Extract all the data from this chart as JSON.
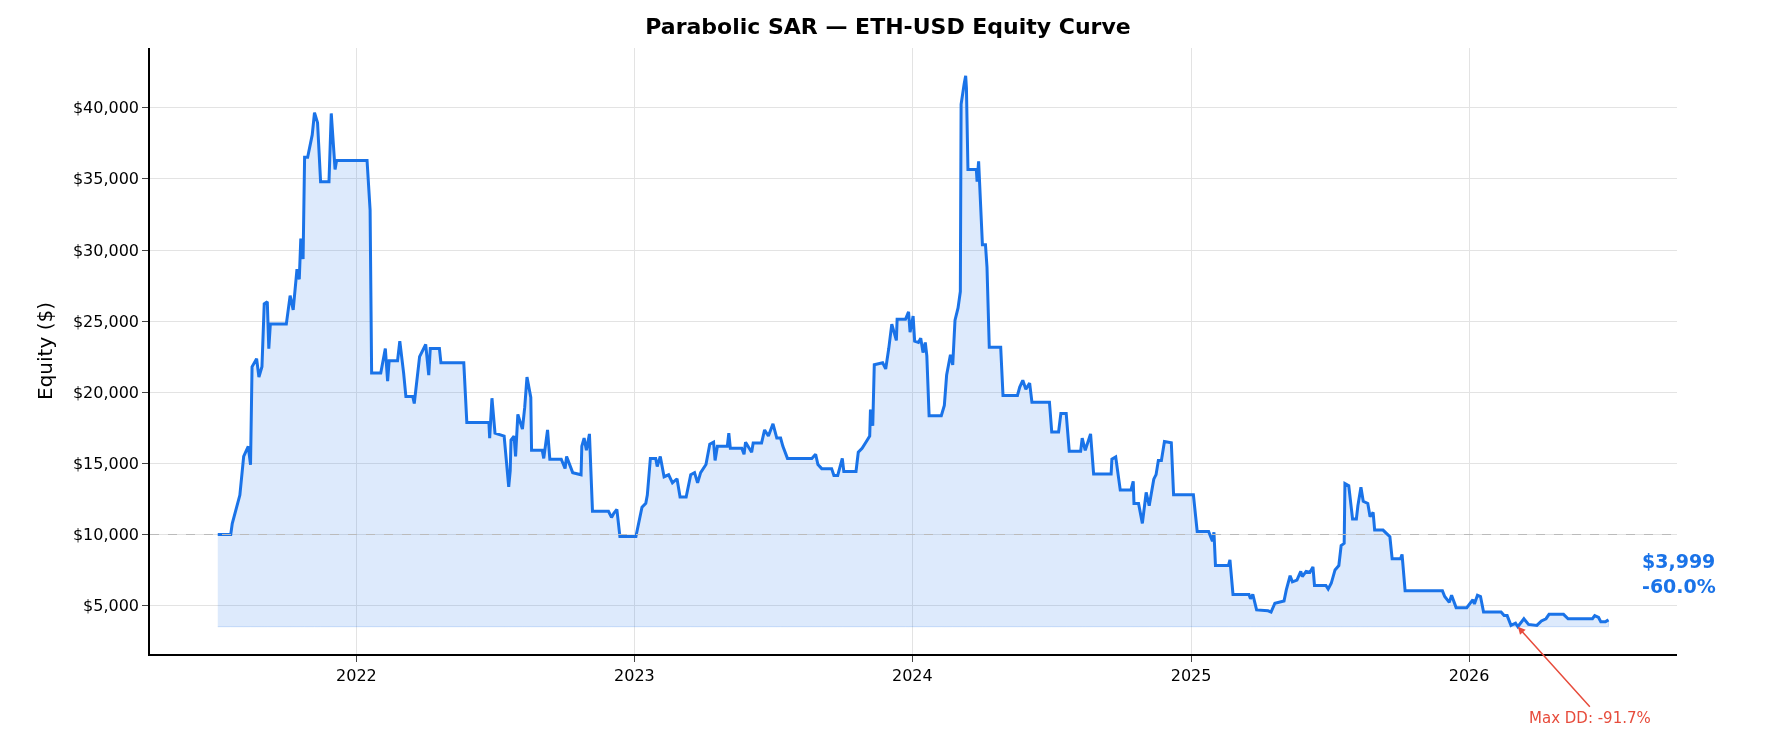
{
  "chart_data": {
    "type": "area",
    "title": "Parabolic SAR — ETH-USD Equity Curve",
    "ylabel": "Equity ($)",
    "x": [
      "2021-07-03",
      "2021-07-20",
      "2021-07-22",
      "2021-08-01",
      "2021-08-06",
      "2021-08-12",
      "2021-08-15",
      "2021-08-17",
      "2021-08-23",
      "2021-08-26",
      "2021-08-30",
      "2021-09-02",
      "2021-09-06",
      "2021-09-08",
      "2021-09-10",
      "2021-10-01",
      "2021-10-06",
      "2021-10-10",
      "2021-10-15",
      "2021-10-18",
      "2021-10-20",
      "2021-10-23",
      "2021-10-25",
      "2021-10-29",
      "2021-11-04",
      "2021-11-07",
      "2021-11-11",
      "2021-11-15",
      "2021-11-26",
      "2021-11-29",
      "2021-12-04",
      "2021-12-06",
      "2022-01-15",
      "2022-01-19",
      "2022-01-21",
      "2022-02-02",
      "2022-02-08",
      "2022-02-11",
      "2022-02-13",
      "2022-02-24",
      "2022-02-27",
      "2022-03-04",
      "2022-03-07",
      "2022-03-16",
      "2022-03-18",
      "2022-03-25",
      "2022-04-02",
      "2022-04-06",
      "2022-04-08",
      "2022-04-20",
      "2022-04-22",
      "2022-05-22",
      "2022-05-26",
      "2022-06-24",
      "2022-06-25",
      "2022-06-28",
      "2022-07-02",
      "2022-07-14",
      "2022-07-20",
      "2022-07-22",
      "2022-07-23",
      "2022-07-27",
      "2022-07-29",
      "2022-08-01",
      "2022-08-07",
      "2022-08-10",
      "2022-08-13",
      "2022-08-18",
      "2022-08-19",
      "2022-09-02",
      "2022-09-04",
      "2022-09-09",
      "2022-09-12",
      "2022-09-27",
      "2022-10-02",
      "2022-10-04",
      "2022-10-12",
      "2022-10-23",
      "2022-10-24",
      "2022-10-27",
      "2022-10-30",
      "2022-11-03",
      "2022-11-07",
      "2022-11-28",
      "2022-12-02",
      "2022-12-05",
      "2022-12-09",
      "2022-12-13",
      "2023-01-03",
      "2023-01-11",
      "2023-01-16",
      "2023-01-18",
      "2023-01-22",
      "2023-01-29",
      "2023-01-31",
      "2023-02-04",
      "2023-02-09",
      "2023-02-15",
      "2023-02-20",
      "2023-02-26",
      "2023-03-02",
      "2023-03-10",
      "2023-03-16",
      "2023-03-21",
      "2023-03-25",
      "2023-03-29",
      "2023-04-05",
      "2023-04-10",
      "2023-04-15",
      "2023-04-17",
      "2023-04-20",
      "2023-05-03",
      "2023-05-05",
      "2023-05-07",
      "2023-05-22",
      "2023-05-25",
      "2023-05-27",
      "2023-06-04",
      "2023-06-06",
      "2023-06-17",
      "2023-06-21",
      "2023-06-26",
      "2023-07-02",
      "2023-07-07",
      "2023-07-12",
      "2023-07-15",
      "2023-07-21",
      "2023-08-22",
      "2023-08-27",
      "2023-08-30",
      "2023-09-04",
      "2023-09-17",
      "2023-09-20",
      "2023-09-25",
      "2023-10-01",
      "2023-10-03",
      "2023-10-19",
      "2023-10-22",
      "2023-10-27",
      "2023-11-01",
      "2023-11-06",
      "2023-11-07",
      "2023-11-10",
      "2023-11-12",
      "2023-11-23",
      "2023-11-27",
      "2023-12-01",
      "2023-12-05",
      "2023-12-11",
      "2023-12-12",
      "2023-12-23",
      "2023-12-27",
      "2023-12-29",
      "2024-01-02",
      "2024-01-04",
      "2024-01-09",
      "2024-01-12",
      "2024-01-15",
      "2024-01-18",
      "2024-01-20",
      "2024-01-23",
      "2024-02-08",
      "2024-02-12",
      "2024-02-15",
      "2024-02-20",
      "2024-02-23",
      "2024-02-26",
      "2024-03-01",
      "2024-03-04",
      "2024-03-05",
      "2024-03-09",
      "2024-03-11",
      "2024-03-12",
      "2024-03-14",
      "2024-03-25",
      "2024-03-26",
      "2024-03-28",
      "2024-04-02",
      "2024-04-06",
      "2024-04-08",
      "2024-04-11",
      "2024-04-26",
      "2024-04-29",
      "2024-05-18",
      "2024-05-21",
      "2024-05-25",
      "2024-05-29",
      "2024-06-03",
      "2024-06-06",
      "2024-06-29",
      "2024-07-02",
      "2024-07-11",
      "2024-07-14",
      "2024-07-21",
      "2024-07-25",
      "2024-08-09",
      "2024-08-11",
      "2024-08-15",
      "2024-08-22",
      "2024-08-26",
      "2024-09-18",
      "2024-09-19",
      "2024-09-24",
      "2024-09-30",
      "2024-10-14",
      "2024-10-17",
      "2024-10-18",
      "2024-10-24",
      "2024-10-29",
      "2024-11-03",
      "2024-11-07",
      "2024-11-13",
      "2024-11-16",
      "2024-11-19",
      "2024-11-23",
      "2024-11-27",
      "2024-12-06",
      "2024-12-09",
      "2025-01-04",
      "2025-01-07",
      "2025-01-09",
      "2025-01-24",
      "2025-01-29",
      "2025-01-31",
      "2025-02-02",
      "2025-02-19",
      "2025-02-21",
      "2025-02-25",
      "2025-03-18",
      "2025-03-20",
      "2025-03-23",
      "2025-03-28",
      "2025-04-12",
      "2025-04-16",
      "2025-04-21",
      "2025-05-03",
      "2025-05-06",
      "2025-05-11",
      "2025-05-14",
      "2025-05-20",
      "2025-05-25",
      "2025-05-27",
      "2025-06-01",
      "2025-06-06",
      "2025-06-10",
      "2025-06-12",
      "2025-06-27",
      "2025-06-30",
      "2025-07-04",
      "2025-07-09",
      "2025-07-14",
      "2025-07-17",
      "2025-07-21",
      "2025-07-22",
      "2025-07-27",
      "2025-08-01",
      "2025-08-06",
      "2025-08-08",
      "2025-08-12",
      "2025-08-15",
      "2025-08-21",
      "2025-08-24",
      "2025-08-28",
      "2025-08-30",
      "2025-09-10",
      "2025-09-19",
      "2025-09-22",
      "2025-10-03",
      "2025-10-05",
      "2025-10-09",
      "2025-11-27",
      "2025-11-30",
      "2025-12-06",
      "2025-12-09",
      "2025-12-15",
      "2025-12-29",
      "2026-01-06",
      "2026-01-08",
      "2026-01-12",
      "2026-01-16",
      "2026-01-20",
      "2026-02-12",
      "2026-02-16",
      "2026-02-20",
      "2026-02-25",
      "2026-03-03",
      "2026-03-06",
      "2026-03-14",
      "2026-03-20",
      "2026-03-31",
      "2026-04-06",
      "2026-04-12",
      "2026-04-16",
      "2026-05-05",
      "2026-05-11",
      "2026-06-12",
      "2026-06-15",
      "2026-06-20",
      "2026-06-23",
      "2026-06-29",
      "2026-07-03"
    ],
    "series": [
      {
        "color": "#1a73e8",
        "values": [
          10000,
          10000,
          10770,
          12770,
          15490,
          16200,
          14900,
          21790,
          22360,
          21070,
          21790,
          26220,
          26360,
          23070,
          24790,
          24790,
          26790,
          25790,
          28650,
          27940,
          30800,
          29360,
          36520,
          36520,
          38090,
          39660,
          38950,
          34800,
          34800,
          39600,
          35660,
          36290,
          36290,
          32800,
          21360,
          21360,
          23070,
          20780,
          22210,
          22210,
          23590,
          21360,
          19700,
          19700,
          19210,
          22500,
          23360,
          21210,
          23070,
          23070,
          22070,
          22070,
          17870,
          17870,
          16780,
          19580,
          17120,
          16920,
          13350,
          14490,
          16640,
          16920,
          15490,
          18440,
          17410,
          18930,
          21070,
          19640,
          15920,
          15920,
          15350,
          17350,
          15290,
          15290,
          14640,
          15490,
          14350,
          14200,
          16210,
          16780,
          15920,
          17070,
          11630,
          11630,
          11200,
          11490,
          11770,
          9860,
          9860,
          11920,
          12200,
          12770,
          15350,
          15350,
          14780,
          15490,
          14060,
          14200,
          13630,
          13920,
          12630,
          12630,
          14200,
          14350,
          13630,
          14350,
          14920,
          16350,
          16490,
          15210,
          16200,
          16200,
          17120,
          16060,
          16060,
          15640,
          16490,
          15780,
          16430,
          16430,
          17350,
          16920,
          17780,
          16780,
          16780,
          16200,
          15350,
          15350,
          15640,
          14920,
          14630,
          14630,
          14150,
          14150,
          15350,
          14430,
          14430,
          15780,
          16060,
          16490,
          16920,
          18780,
          17640,
          21930,
          22070,
          21640,
          23070,
          24790,
          23640,
          25130,
          25130,
          25650,
          24220,
          25360,
          23590,
          23500,
          23790,
          22790,
          23500,
          22560,
          18350,
          18350,
          19070,
          21210,
          22640,
          21930,
          25070,
          25930,
          27080,
          40240,
          41670,
          42240,
          41380,
          35660,
          35660,
          34800,
          36230,
          30370,
          30370,
          28800,
          23160,
          23160,
          19780,
          19780,
          20360,
          20840,
          20210,
          20640,
          19300,
          19300,
          17210,
          17210,
          18500,
          18500,
          15860,
          15860,
          16780,
          15920,
          17070,
          14260,
          14260,
          15300,
          15450,
          13120,
          13120,
          13740,
          12180,
          12180,
          10780,
          12960,
          12020,
          13890,
          14210,
          15200,
          15200,
          16540,
          16450,
          12800,
          12800,
          11250,
          10220,
          10220,
          9530,
          10160,
          7820,
          7820,
          8220,
          5790,
          5790,
          5480,
          5790,
          4700,
          4640,
          4550,
          5170,
          5330,
          6110,
          7100,
          6670,
          6790,
          7410,
          7040,
          7410,
          7350,
          7720,
          6420,
          6420,
          6170,
          6570,
          7510,
          7820,
          9220,
          9380,
          13580,
          13430,
          11090,
          11090,
          12020,
          13330,
          12340,
          12180,
          11250,
          11560,
          10310,
          10310,
          9840,
          8290,
          8290,
          8600,
          6040,
          6040,
          5640,
          5230,
          5730,
          4860,
          4860,
          5420,
          5110,
          5730,
          5640,
          4550,
          4550,
          4300,
          4300,
          3610,
          3770,
          3520,
          4080,
          3680,
          3610,
          3920,
          4080,
          4390,
          4390,
          4080,
          4080,
          4300,
          4170,
          3860,
          3860,
          3999
        ]
      }
    ],
    "xlim": [
      "2021-04-05",
      "2026-10-01"
    ],
    "xticks": [
      "2022",
      "2023",
      "2024",
      "2025",
      "2026"
    ],
    "ylim": [
      1600,
      44200
    ],
    "yticks": [
      {
        "value": 5000,
        "label": "$5,000"
      },
      {
        "value": 10000,
        "label": "$10,000"
      },
      {
        "value": 15000,
        "label": "$15,000"
      },
      {
        "value": 20000,
        "label": "$20,000"
      },
      {
        "value": 25000,
        "label": "$25,000"
      },
      {
        "value": 30000,
        "label": "$30,000"
      },
      {
        "value": 35000,
        "label": "$35,000"
      },
      {
        "value": 40000,
        "label": "$40,000"
      }
    ],
    "ref_lines": [
      {
        "axis": "y",
        "value": 10000,
        "color": "#bbbbbb",
        "line_style": "dashed"
      }
    ],
    "annotations": [
      {
        "text": "$3,999\n-60.0%",
        "x": "2026-07-03",
        "y": 3999
      },
      {
        "text": "Max DD: -91.7%",
        "x": "2026-03-06",
        "y": 3520
      }
    ],
    "grid": true,
    "line_style": "solid",
    "marker": "none"
  }
}
